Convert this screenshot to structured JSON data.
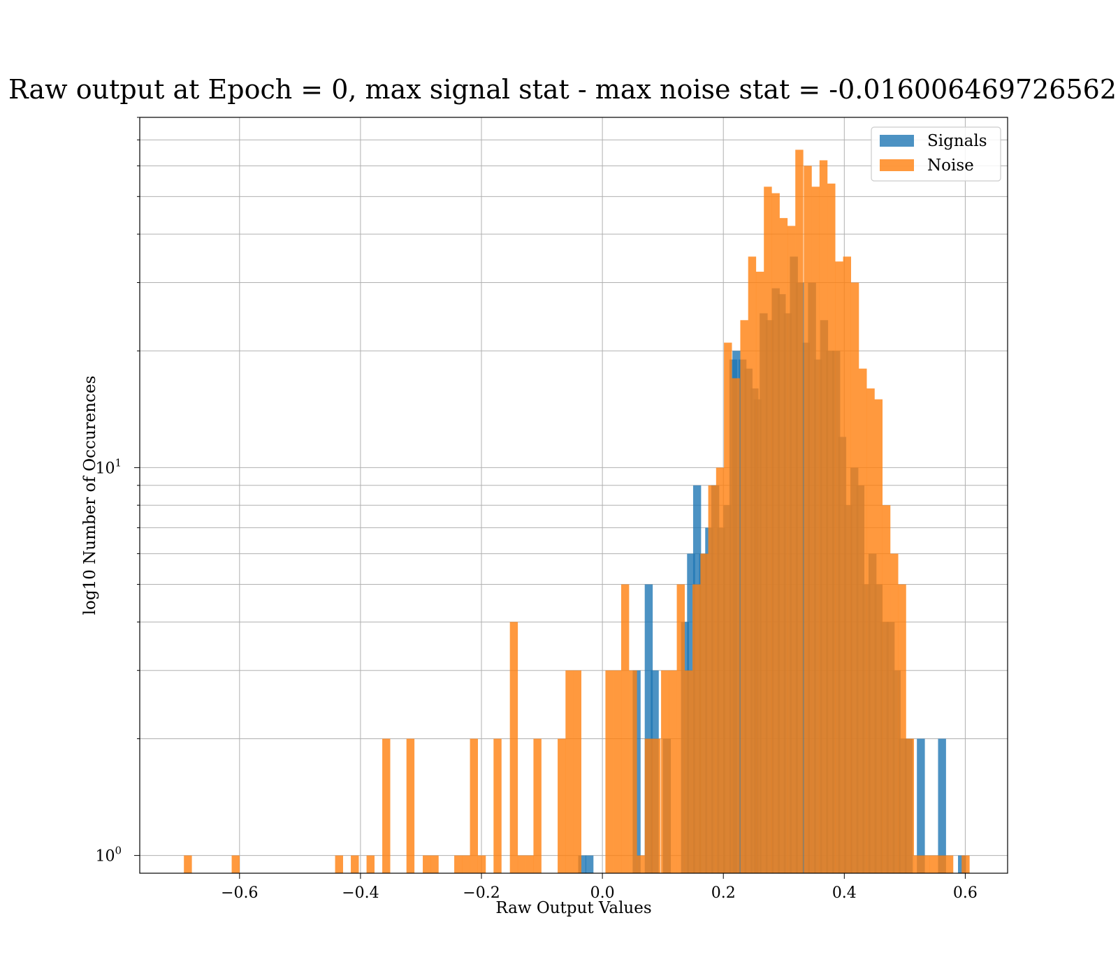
{
  "chart_data": {
    "type": "bar",
    "title": "Raw output at Epoch = 0, max signal stat - max noise stat = -0.016006469726562",
    "xlabel": "Raw Output Values",
    "ylabel": "log10 Number of Occurences",
    "xlim": [
      -0.765,
      0.67
    ],
    "ylim": [
      0.9,
      80
    ],
    "yscale": "log",
    "bin_width": 0.0132,
    "grid": true,
    "legend_position": "top-right",
    "x_ticks": [
      -0.6,
      -0.4,
      -0.2,
      0.0,
      0.2,
      0.4,
      0.6
    ],
    "x_tick_labels": [
      "−0.6",
      "−0.4",
      "−0.2",
      "0.0",
      "0.2",
      "0.4",
      "0.6"
    ],
    "y_ticks": [
      1,
      10
    ],
    "y_tick_labels": [
      {
        "base": "10",
        "exp": "0"
      },
      {
        "base": "10",
        "exp": "1"
      }
    ],
    "series": [
      {
        "name": "Signals",
        "color": "#1f77b4",
        "alpha": 0.8,
        "bins": [
          [
            -0.04,
            1
          ],
          [
            -0.028,
            1
          ],
          [
            0.05,
            3
          ],
          [
            0.07,
            5
          ],
          [
            0.08,
            3
          ],
          [
            0.1,
            2
          ],
          [
            0.13,
            4
          ],
          [
            0.14,
            6
          ],
          [
            0.15,
            9
          ],
          [
            0.16,
            6
          ],
          [
            0.17,
            7
          ],
          [
            0.18,
            9
          ],
          [
            0.19,
            7
          ],
          [
            0.2,
            8
          ],
          [
            0.21,
            19
          ],
          [
            0.215,
            20
          ],
          [
            0.225,
            19
          ],
          [
            0.235,
            18
          ],
          [
            0.245,
            16
          ],
          [
            0.25,
            15
          ],
          [
            0.26,
            25
          ],
          [
            0.27,
            24
          ],
          [
            0.28,
            29
          ],
          [
            0.29,
            28
          ],
          [
            0.3,
            25
          ],
          [
            0.31,
            35
          ],
          [
            0.32,
            30
          ],
          [
            0.33,
            21
          ],
          [
            0.34,
            30
          ],
          [
            0.35,
            19
          ],
          [
            0.36,
            24
          ],
          [
            0.37,
            20
          ],
          [
            0.38,
            20
          ],
          [
            0.39,
            12
          ],
          [
            0.4,
            8
          ],
          [
            0.41,
            10
          ],
          [
            0.42,
            9
          ],
          [
            0.43,
            5
          ],
          [
            0.44,
            6
          ],
          [
            0.45,
            5
          ],
          [
            0.46,
            4
          ],
          [
            0.47,
            4
          ],
          [
            0.48,
            3
          ],
          [
            0.49,
            2
          ],
          [
            0.5,
            2
          ],
          [
            0.52,
            2
          ],
          [
            0.555,
            2
          ],
          [
            0.588,
            1
          ]
        ]
      },
      {
        "name": "Noise",
        "color": "#ff7f0e",
        "alpha": 0.8,
        "bins": [
          [
            -0.692,
            1
          ],
          [
            -0.613,
            1
          ],
          [
            -0.442,
            1
          ],
          [
            -0.416,
            1
          ],
          [
            -0.39,
            1
          ],
          [
            -0.364,
            2
          ],
          [
            -0.324,
            2
          ],
          [
            -0.297,
            1
          ],
          [
            -0.284,
            1
          ],
          [
            -0.245,
            1
          ],
          [
            -0.232,
            1
          ],
          [
            -0.219,
            2
          ],
          [
            -0.206,
            1
          ],
          [
            -0.18,
            2
          ],
          [
            -0.153,
            4
          ],
          [
            -0.14,
            1
          ],
          [
            -0.127,
            1
          ],
          [
            -0.114,
            2
          ],
          [
            -0.074,
            2
          ],
          [
            -0.061,
            3
          ],
          [
            -0.048,
            3
          ],
          [
            0.005,
            3
          ],
          [
            0.018,
            3
          ],
          [
            0.031,
            5
          ],
          [
            0.044,
            3
          ],
          [
            0.057,
            1
          ],
          [
            0.07,
            2
          ],
          [
            0.083,
            2
          ],
          [
            0.097,
            3
          ],
          [
            0.11,
            3
          ],
          [
            0.123,
            5
          ],
          [
            0.136,
            3
          ],
          [
            0.149,
            5
          ],
          [
            0.162,
            6
          ],
          [
            0.175,
            9
          ],
          [
            0.188,
            10
          ],
          [
            0.201,
            21
          ],
          [
            0.214,
            17
          ],
          [
            0.228,
            24
          ],
          [
            0.241,
            35
          ],
          [
            0.254,
            32
          ],
          [
            0.267,
            53
          ],
          [
            0.28,
            51
          ],
          [
            0.293,
            44
          ],
          [
            0.306,
            42
          ],
          [
            0.319,
            66
          ],
          [
            0.333,
            60
          ],
          [
            0.346,
            53
          ],
          [
            0.359,
            62
          ],
          [
            0.372,
            54
          ],
          [
            0.385,
            34
          ],
          [
            0.398,
            35
          ],
          [
            0.411,
            30
          ],
          [
            0.424,
            18
          ],
          [
            0.437,
            16
          ],
          [
            0.45,
            15
          ],
          [
            0.463,
            8
          ],
          [
            0.476,
            6
          ],
          [
            0.489,
            5
          ],
          [
            0.502,
            2
          ],
          [
            0.515,
            1
          ],
          [
            0.528,
            1
          ],
          [
            0.541,
            1
          ],
          [
            0.554,
            1
          ],
          [
            0.567,
            1
          ],
          [
            0.594,
            1
          ]
        ]
      }
    ]
  }
}
